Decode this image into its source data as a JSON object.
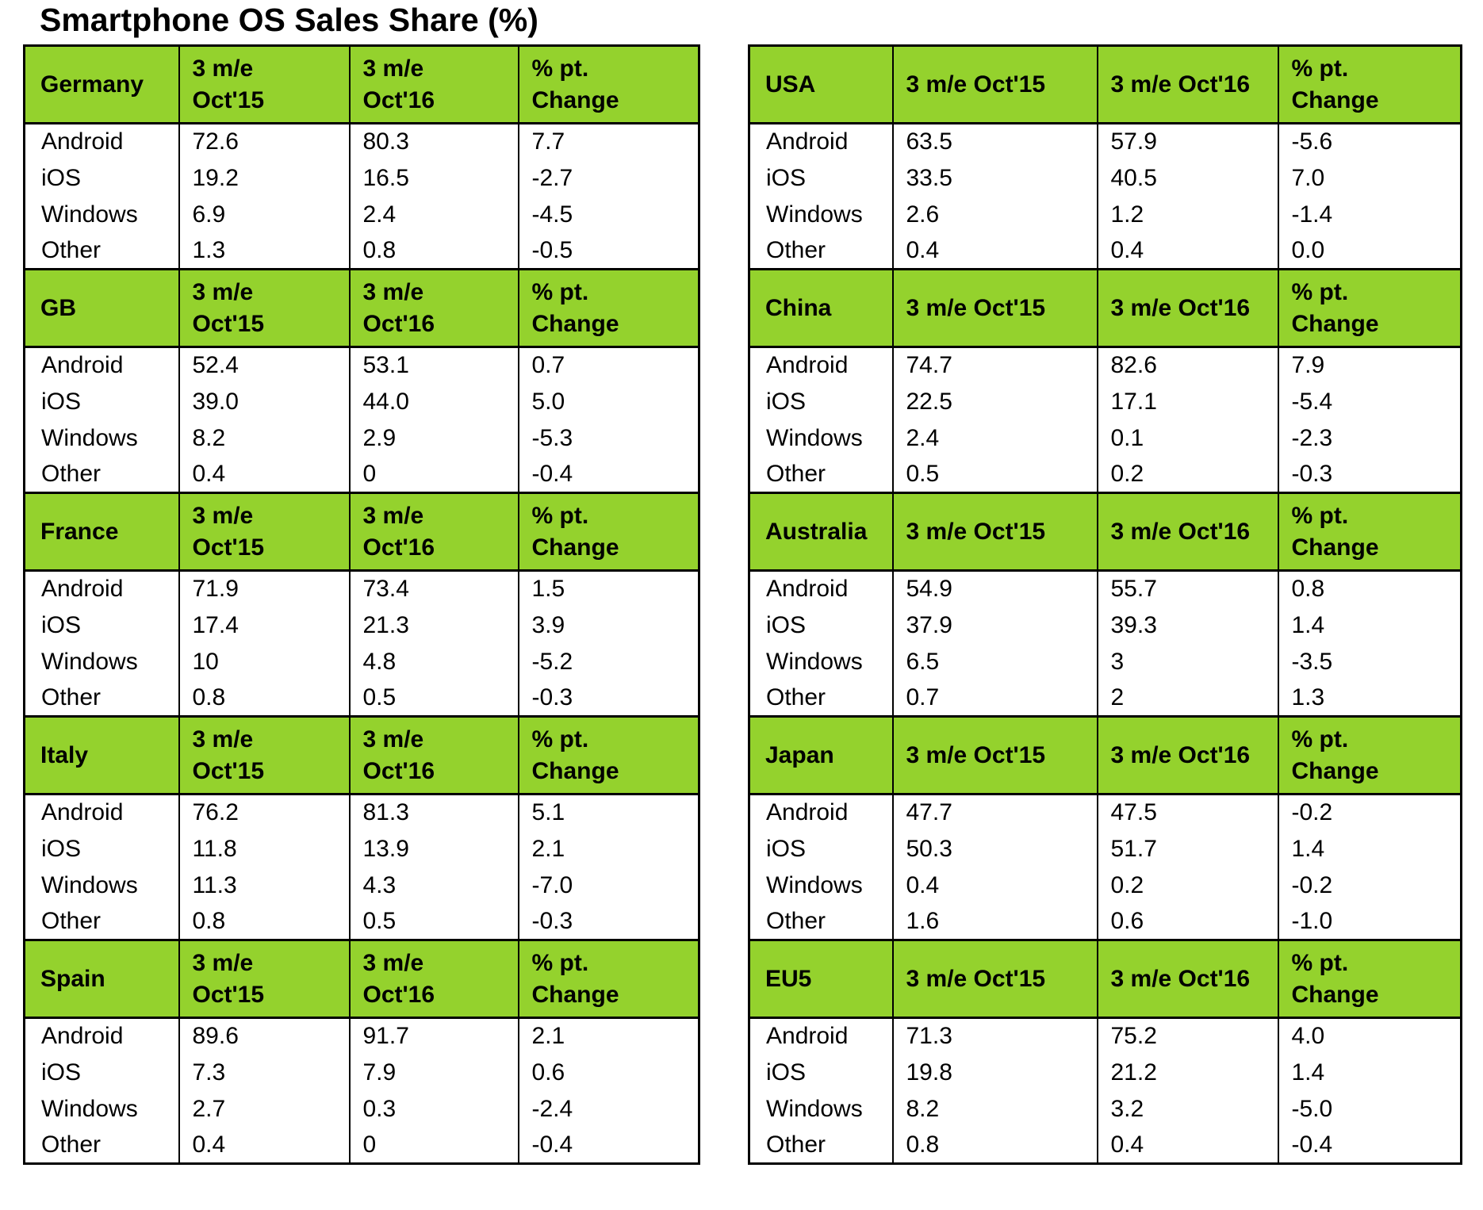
{
  "title": "Smartphone OS Sales Share (%)",
  "colors": {
    "header_green": "#94D22D",
    "border": "#000000",
    "text": "#000000",
    "background": "#FFFFFF"
  },
  "chart_data": {
    "type": "table",
    "title": "Smartphone OS Sales Share (%)",
    "columns": [
      "3 m/e Oct'15",
      "3 m/e Oct'16",
      "% pt. Change"
    ],
    "row_categories": [
      "Android",
      "iOS",
      "Windows",
      "Other"
    ],
    "layout": {
      "grid": "two table columns, five country blocks each",
      "header_fill": "green",
      "values_unit": "percent"
    },
    "tables": [
      {
        "side": "left",
        "country": "Germany",
        "headers": [
          "3 m/e\nOct'15",
          "3 m/e\nOct'16",
          "% pt.\nChange"
        ],
        "rows": [
          [
            "Android",
            "72.6",
            "80.3",
            "7.7"
          ],
          [
            "iOS",
            "19.2",
            "16.5",
            "-2.7"
          ],
          [
            "Windows",
            "6.9",
            "2.4",
            "-4.5"
          ],
          [
            "Other",
            "1.3",
            "0.8",
            "-0.5"
          ]
        ]
      },
      {
        "side": "left",
        "country": "GB",
        "headers": [
          "3 m/e\nOct'15",
          "3 m/e\nOct'16",
          "% pt.\nChange"
        ],
        "rows": [
          [
            "Android",
            "52.4",
            "53.1",
            "0.7"
          ],
          [
            "iOS",
            "39.0",
            "44.0",
            "5.0"
          ],
          [
            "Windows",
            "8.2",
            "2.9",
            "-5.3"
          ],
          [
            "Other",
            "0.4",
            "0",
            "-0.4"
          ]
        ]
      },
      {
        "side": "left",
        "country": "France",
        "headers": [
          "3 m/e\nOct'15",
          "3 m/e\nOct'16",
          "% pt.\nChange"
        ],
        "rows": [
          [
            "Android",
            "71.9",
            "73.4",
            "1.5"
          ],
          [
            "iOS",
            "17.4",
            "21.3",
            "3.9"
          ],
          [
            "Windows",
            "10",
            "4.8",
            "-5.2"
          ],
          [
            "Other",
            "0.8",
            "0.5",
            "-0.3"
          ]
        ]
      },
      {
        "side": "left",
        "country": "Italy",
        "headers": [
          "3 m/e\nOct'15",
          "3 m/e\nOct'16",
          "% pt.\nChange"
        ],
        "rows": [
          [
            "Android",
            "76.2",
            "81.3",
            "5.1"
          ],
          [
            "iOS",
            "11.8",
            "13.9",
            "2.1"
          ],
          [
            "Windows",
            "11.3",
            "4.3",
            "-7.0"
          ],
          [
            "Other",
            "0.8",
            "0.5",
            "-0.3"
          ]
        ]
      },
      {
        "side": "left",
        "country": "Spain",
        "headers": [
          "3 m/e\nOct'15",
          "3 m/e\nOct'16",
          "% pt.\nChange"
        ],
        "rows": [
          [
            "Android",
            "89.6",
            "91.7",
            "2.1"
          ],
          [
            "iOS",
            "7.3",
            "7.9",
            "0.6"
          ],
          [
            "Windows",
            "2.7",
            "0.3",
            "-2.4"
          ],
          [
            "Other",
            "0.4",
            "0",
            "-0.4"
          ]
        ]
      },
      {
        "side": "right",
        "country": "USA",
        "headers": [
          "3 m/e Oct'15",
          "3 m/e Oct'16",
          "% pt.\nChange"
        ],
        "rows": [
          [
            "Android",
            "63.5",
            "57.9",
            "-5.6"
          ],
          [
            "iOS",
            "33.5",
            "40.5",
            "7.0"
          ],
          [
            "Windows",
            "2.6",
            "1.2",
            "-1.4"
          ],
          [
            "Other",
            "0.4",
            "0.4",
            "0.0"
          ]
        ]
      },
      {
        "side": "right",
        "country": "China",
        "headers": [
          "3 m/e Oct'15",
          "3 m/e Oct'16",
          "% pt.\nChange"
        ],
        "rows": [
          [
            "Android",
            "74.7",
            "82.6",
            "7.9"
          ],
          [
            "iOS",
            "22.5",
            "17.1",
            "-5.4"
          ],
          [
            "Windows",
            "2.4",
            "0.1",
            "-2.3"
          ],
          [
            "Other",
            "0.5",
            "0.2",
            "-0.3"
          ]
        ]
      },
      {
        "side": "right",
        "country": "Australia",
        "headers": [
          "3 m/e Oct'15",
          "3 m/e Oct'16",
          "% pt.\nChange"
        ],
        "rows": [
          [
            "Android",
            "54.9",
            "55.7",
            "0.8"
          ],
          [
            "iOS",
            "37.9",
            "39.3",
            "1.4"
          ],
          [
            "Windows",
            "6.5",
            "3",
            "-3.5"
          ],
          [
            "Other",
            "0.7",
            "2",
            "1.3"
          ]
        ]
      },
      {
        "side": "right",
        "country": "Japan",
        "headers": [
          "3 m/e Oct'15",
          "3 m/e Oct'16",
          "% pt.\nChange"
        ],
        "rows": [
          [
            "Android",
            "47.7",
            "47.5",
            "-0.2"
          ],
          [
            "iOS",
            "50.3",
            "51.7",
            "1.4"
          ],
          [
            "Windows",
            "0.4",
            "0.2",
            "-0.2"
          ],
          [
            "Other",
            "1.6",
            "0.6",
            "-1.0"
          ]
        ]
      },
      {
        "side": "right",
        "country": "EU5",
        "headers": [
          "3 m/e Oct'15",
          "3 m/e Oct'16",
          "% pt.\nChange"
        ],
        "rows": [
          [
            "Android",
            "71.3",
            "75.2",
            "4.0"
          ],
          [
            "iOS",
            "19.8",
            "21.2",
            "1.4"
          ],
          [
            "Windows",
            "8.2",
            "3.2",
            "-5.0"
          ],
          [
            "Other",
            "0.8",
            "0.4",
            "-0.4"
          ]
        ]
      }
    ]
  }
}
